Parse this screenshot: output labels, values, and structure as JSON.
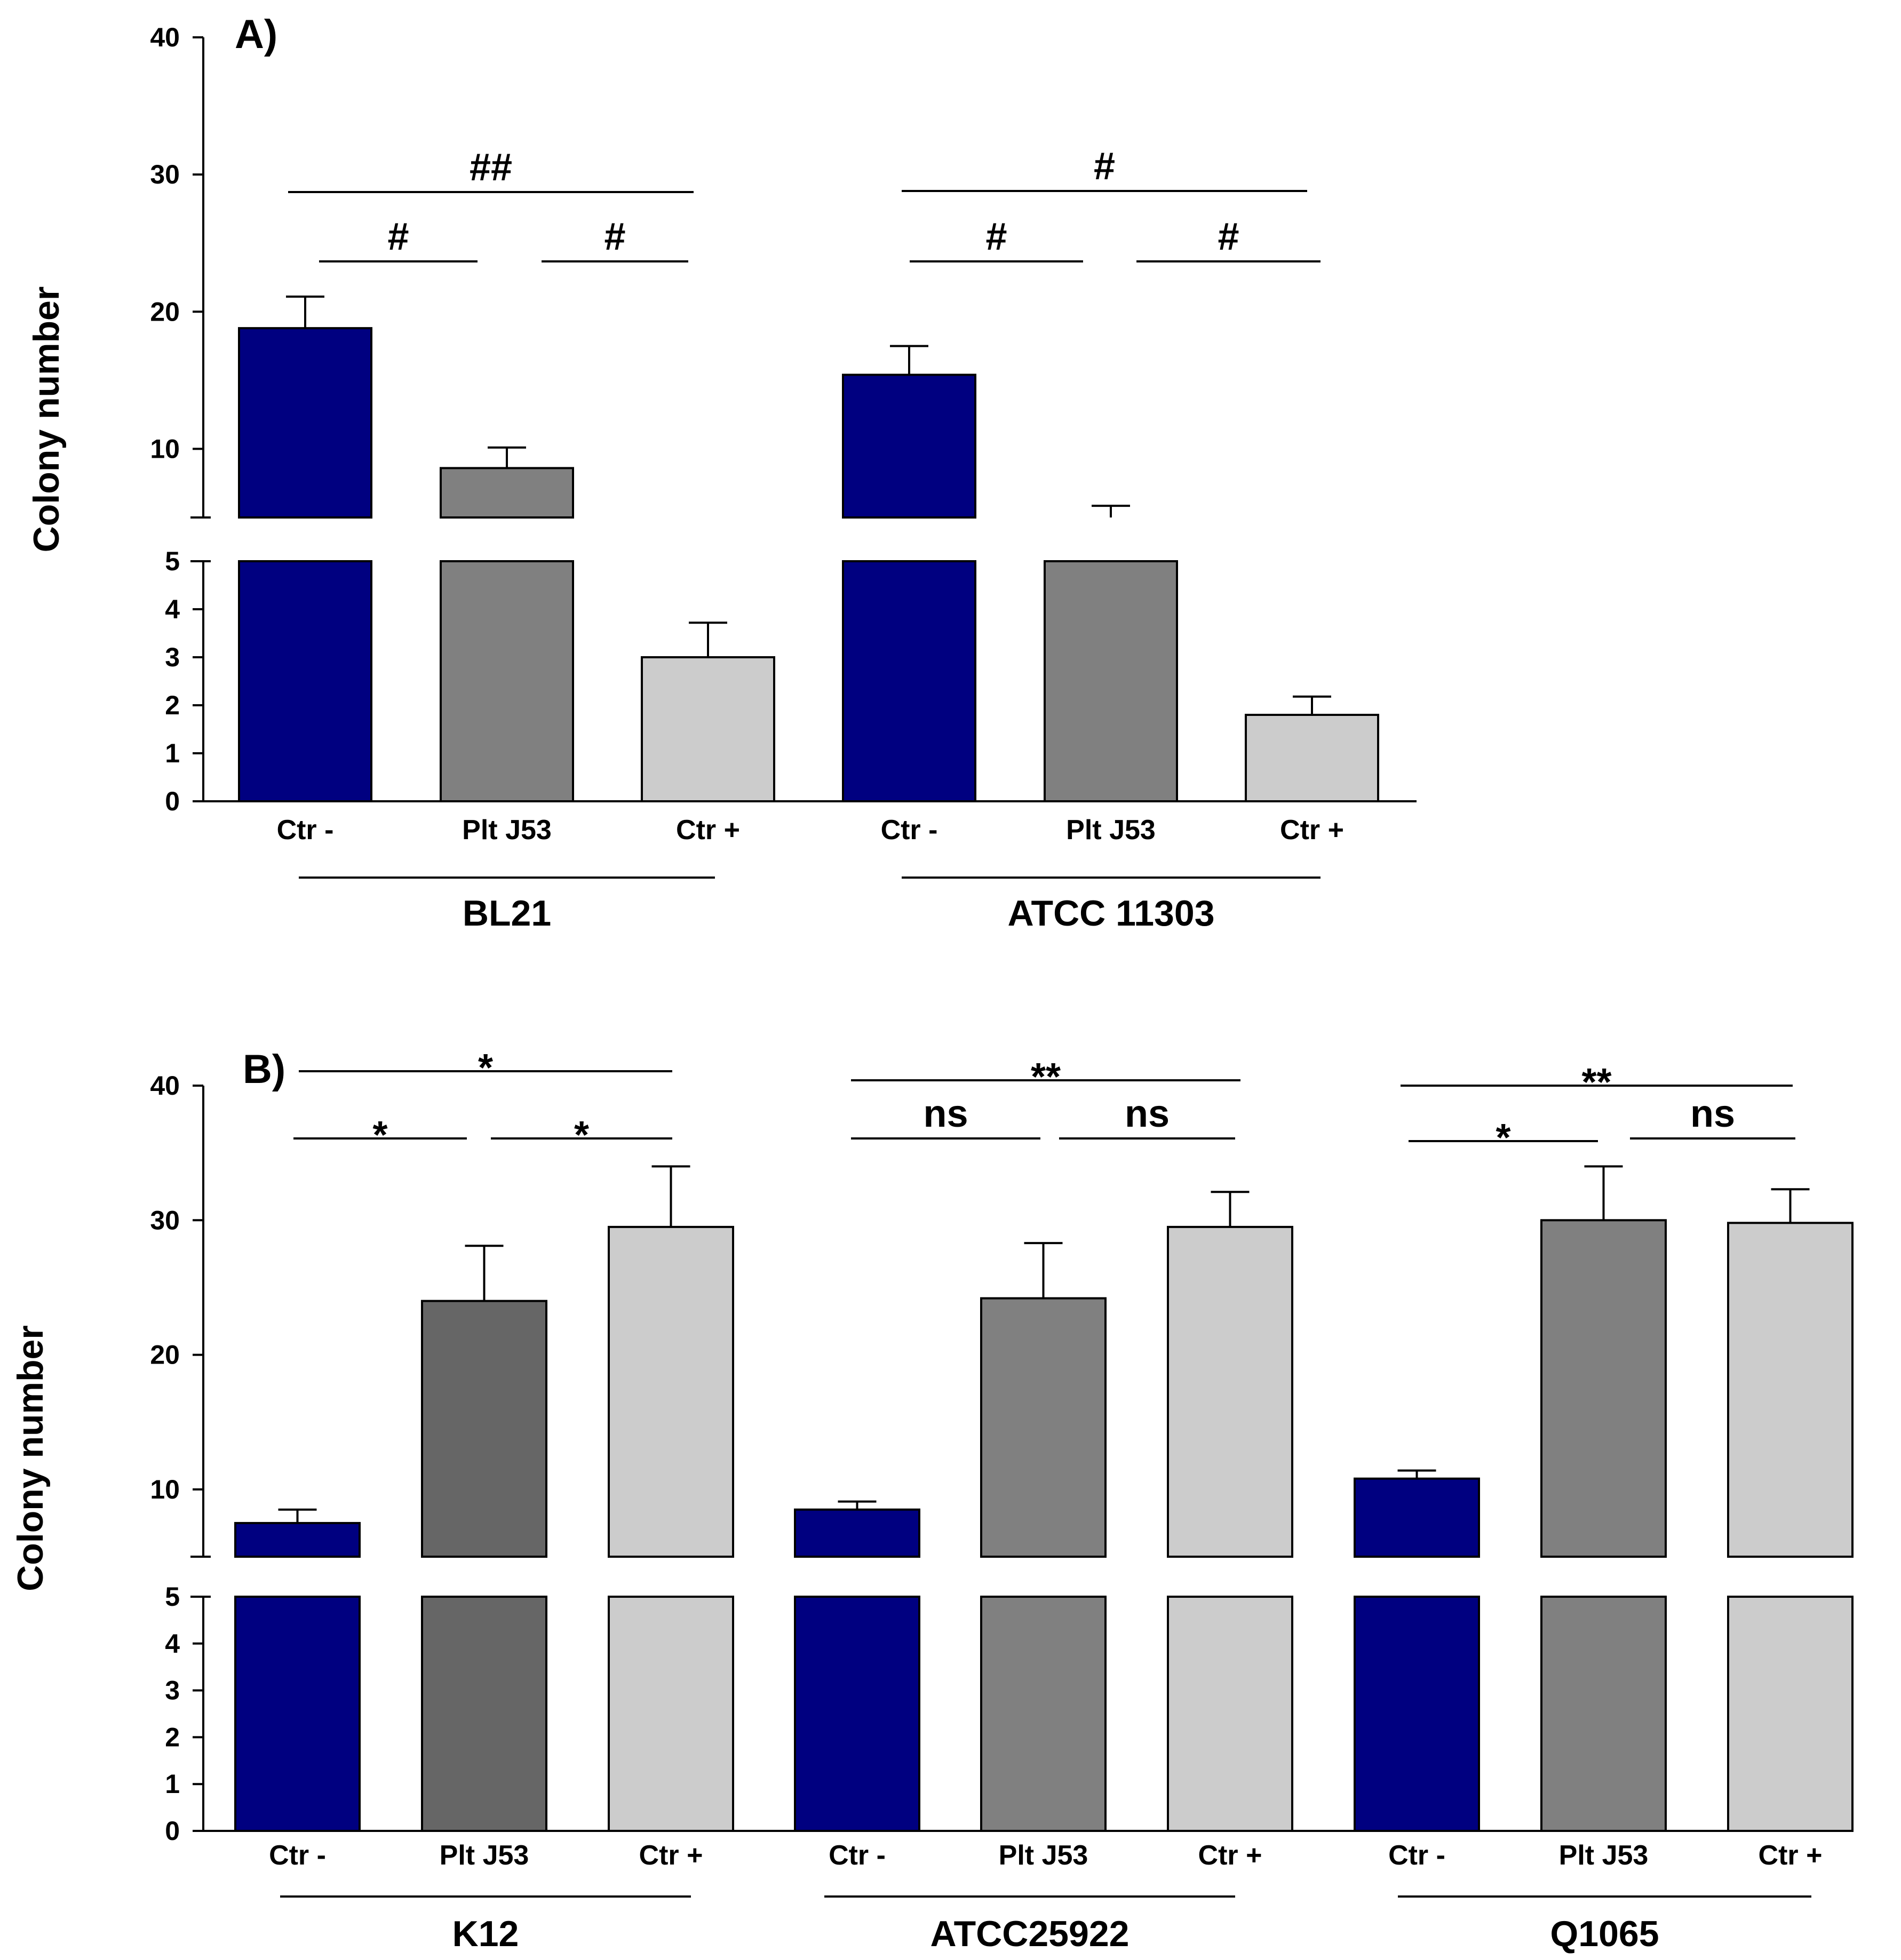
{
  "chart_data": [
    {
      "type": "bar",
      "panel_label": "A)",
      "ylabel": "Colony number",
      "broken_axis": true,
      "ylim_lower": [
        0,
        5
      ],
      "ylim_upper": [
        5,
        40
      ],
      "yticks_lower": [
        "0",
        "1",
        "2",
        "3",
        "4",
        "5"
      ],
      "yticks_upper": [
        "10",
        "20",
        "30",
        "40"
      ],
      "categories": [
        "Ctr -",
        "Plt J53",
        "Ctr +",
        "Ctr -",
        "Plt J53",
        "Ctr +"
      ],
      "groups": [
        {
          "name": "BL21",
          "bars": [
            {
              "label": "Ctr -",
              "value": 18.8,
              "error": 2.3,
              "color": "#000080"
            },
            {
              "label": "Plt J53",
              "value": 8.6,
              "error": 1.5,
              "color": "#808080"
            },
            {
              "label": "Ctr +",
              "value": 3.0,
              "error": 0.72,
              "color": "#cccccc"
            }
          ],
          "comparisons": [
            {
              "from": 0,
              "to": 2,
              "label": "##"
            },
            {
              "from": 0,
              "to": 1,
              "label": "#"
            },
            {
              "from": 1,
              "to": 2,
              "label": "#"
            }
          ]
        },
        {
          "name": "ATCC 11303",
          "bars": [
            {
              "label": "Ctr -",
              "value": 15.4,
              "error": 2.1,
              "color": "#000080"
            },
            {
              "label": "Plt J53",
              "value": 5.0,
              "error": 0.85,
              "color": "#808080"
            },
            {
              "label": "Ctr +",
              "value": 1.8,
              "error": 0.38,
              "color": "#cccccc"
            }
          ],
          "comparisons": [
            {
              "from": 0,
              "to": 2,
              "label": "#"
            },
            {
              "from": 0,
              "to": 1,
              "label": "#"
            },
            {
              "from": 1,
              "to": 2,
              "label": "#"
            }
          ]
        }
      ]
    },
    {
      "type": "bar",
      "panel_label": "B)",
      "ylabel": "Colony number",
      "broken_axis": true,
      "ylim_lower": [
        0,
        5
      ],
      "ylim_upper": [
        5,
        40
      ],
      "yticks_lower": [
        "0",
        "1",
        "2",
        "3",
        "4",
        "5"
      ],
      "yticks_upper": [
        "10",
        "20",
        "30",
        "40"
      ],
      "categories": [
        "Ctr -",
        "Plt J53",
        "Ctr +",
        "Ctr -",
        "Plt J53",
        "Ctr +",
        "Ctr -",
        "Plt J53",
        "Ctr +"
      ],
      "groups": [
        {
          "name": "K12",
          "bars": [
            {
              "label": "Ctr -",
              "value": 7.5,
              "error": 1.0,
              "color": "#000080"
            },
            {
              "label": "Plt J53",
              "value": 24.0,
              "error": 4.1,
              "color": "#666666"
            },
            {
              "label": "Ctr +",
              "value": 29.5,
              "error": 4.5,
              "color": "#cccccc"
            }
          ],
          "comparisons": [
            {
              "from": 0,
              "to": 2,
              "label": "*"
            },
            {
              "from": 0,
              "to": 1,
              "label": "*"
            },
            {
              "from": 1,
              "to": 2,
              "label": "*"
            }
          ]
        },
        {
          "name": "ATCC25922",
          "bars": [
            {
              "label": "Ctr -",
              "value": 8.5,
              "error": 0.6,
              "color": "#000080"
            },
            {
              "label": "Plt J53",
              "value": 24.2,
              "error": 4.1,
              "color": "#808080"
            },
            {
              "label": "Ctr +",
              "value": 29.5,
              "error": 2.6,
              "color": "#cccccc"
            }
          ],
          "comparisons": [
            {
              "from": 0,
              "to": 2,
              "label": "**"
            },
            {
              "from": 0,
              "to": 1,
              "label": "ns"
            },
            {
              "from": 1,
              "to": 2,
              "label": "ns"
            }
          ]
        },
        {
          "name": "Q1065",
          "bars": [
            {
              "label": "Ctr -",
              "value": 10.8,
              "error": 0.6,
              "color": "#000080"
            },
            {
              "label": "Plt J53",
              "value": 30.0,
              "error": 4.0,
              "color": "#808080"
            },
            {
              "label": "Ctr +",
              "value": 29.8,
              "error": 2.5,
              "color": "#cccccc"
            }
          ],
          "comparisons": [
            {
              "from": 0,
              "to": 2,
              "label": "**"
            },
            {
              "from": 0,
              "to": 1,
              "label": "*"
            },
            {
              "from": 1,
              "to": 2,
              "label": "ns"
            }
          ]
        }
      ]
    }
  ]
}
